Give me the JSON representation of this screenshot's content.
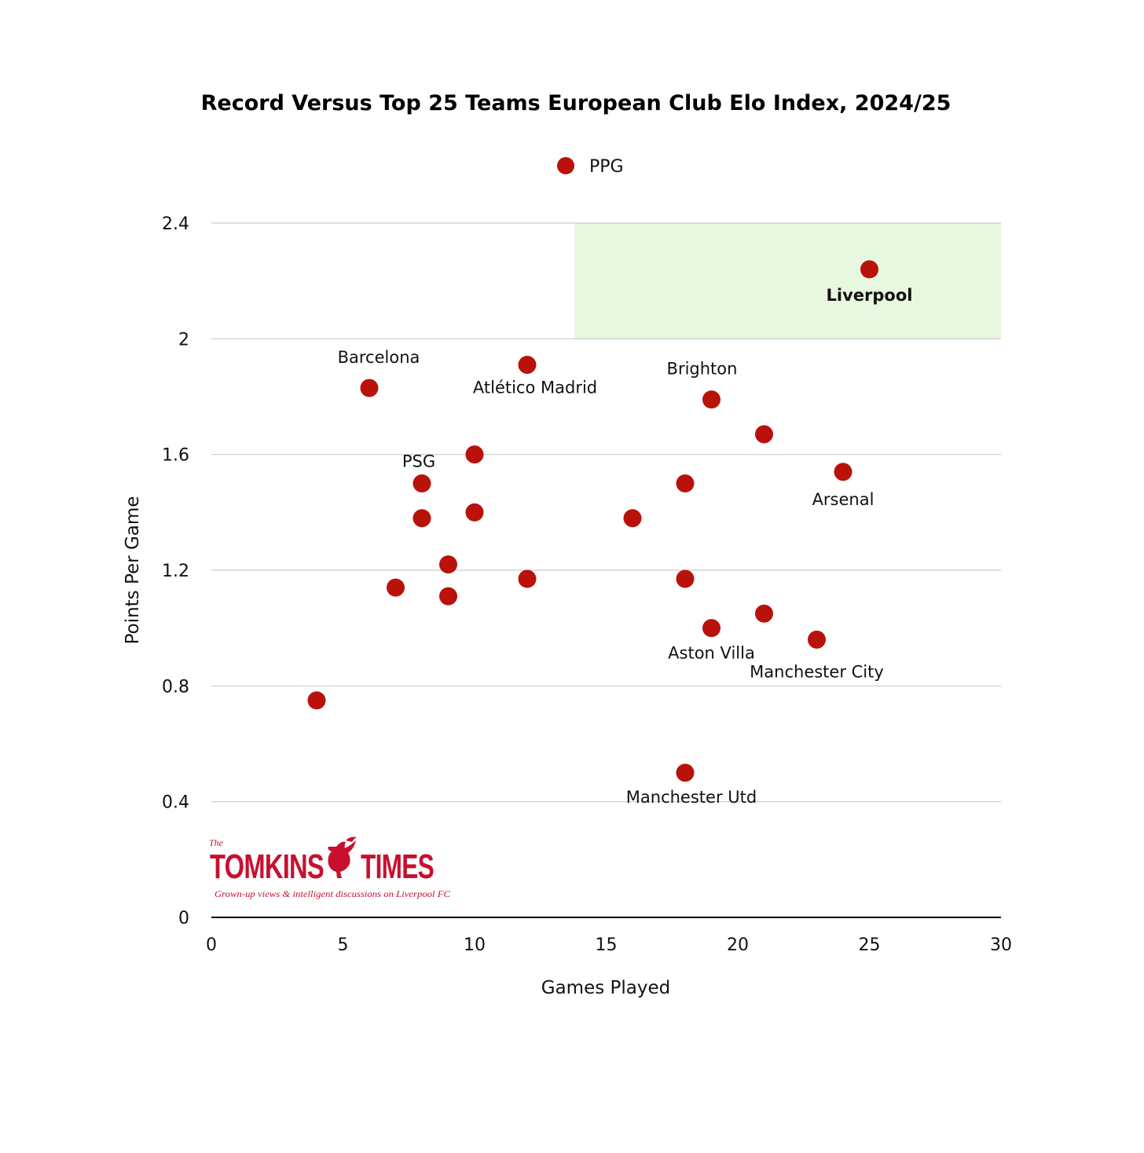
{
  "logo": {
    "the": "The",
    "name_left": "TOMKINS",
    "name_right": "TIMES",
    "tagline": "Grown-up views & intelligent discussions on Liverpool FC"
  },
  "colors": {
    "marker": "#b8120a",
    "highlight_region": "#e8f8e0",
    "gridline": "#cccccc",
    "axis": "#000000"
  },
  "chart_data": {
    "type": "scatter",
    "title": "Record Versus Top 25 Teams European Club Elo Index, 2024/25",
    "xlabel": "Games Played",
    "ylabel": "Points Per Game",
    "xlim": [
      0,
      30
    ],
    "ylim": [
      0,
      2.4
    ],
    "x_ticks": [
      0,
      5,
      10,
      15,
      20,
      25,
      30
    ],
    "y_ticks": [
      {
        "value": 0,
        "label": "0"
      },
      {
        "value": 0.4,
        "label": "0.4"
      },
      {
        "value": 0.8,
        "label": "0.8"
      },
      {
        "value": 1.2,
        "label": "1.2"
      },
      {
        "value": 1.6,
        "label": "1.6"
      },
      {
        "value": 2.0,
        "label": "2"
      },
      {
        "value": 2.4,
        "label": "2.4"
      }
    ],
    "grid": true,
    "legend": {
      "position": "top-center",
      "entries": [
        "PPG"
      ]
    },
    "highlight_region": {
      "x": [
        13.8,
        30
      ],
      "y": [
        2.0,
        2.4
      ]
    },
    "series": [
      {
        "name": "PPG",
        "points": [
          {
            "x": 25,
            "y": 2.24
          },
          {
            "x": 12,
            "y": 1.91
          },
          {
            "x": 6,
            "y": 1.83
          },
          {
            "x": 19,
            "y": 1.79
          },
          {
            "x": 21,
            "y": 1.67
          },
          {
            "x": 10,
            "y": 1.6
          },
          {
            "x": 24,
            "y": 1.54
          },
          {
            "x": 8,
            "y": 1.5
          },
          {
            "x": 18,
            "y": 1.5
          },
          {
            "x": 10,
            "y": 1.4
          },
          {
            "x": 8,
            "y": 1.38
          },
          {
            "x": 16,
            "y": 1.38
          },
          {
            "x": 9,
            "y": 1.22
          },
          {
            "x": 12,
            "y": 1.17
          },
          {
            "x": 18,
            "y": 1.17
          },
          {
            "x": 7,
            "y": 1.14
          },
          {
            "x": 9,
            "y": 1.11
          },
          {
            "x": 21,
            "y": 1.05
          },
          {
            "x": 19,
            "y": 1.0
          },
          {
            "x": 23,
            "y": 0.96
          },
          {
            "x": 4,
            "y": 0.75
          },
          {
            "x": 18,
            "y": 0.5
          }
        ]
      }
    ],
    "annotations": [
      {
        "text": "Liverpool",
        "x": 25,
        "y": 2.24,
        "bold": true
      },
      {
        "text": "Barcelona",
        "x": 6,
        "y": 1.83,
        "bold": false
      },
      {
        "text": "Atlético Madrid",
        "x": 12,
        "y": 1.91,
        "bold": false
      },
      {
        "text": "Brighton",
        "x": 19,
        "y": 1.79,
        "bold": false
      },
      {
        "text": "PSG",
        "x": 8,
        "y": 1.5,
        "bold": false
      },
      {
        "text": "Arsenal",
        "x": 24,
        "y": 1.54,
        "bold": false
      },
      {
        "text": "Aston Villa",
        "x": 19,
        "y": 1.0,
        "bold": false
      },
      {
        "text": "Manchester City",
        "x": 23,
        "y": 0.96,
        "bold": false
      },
      {
        "text": "Manchester Utd",
        "x": 18,
        "y": 0.5,
        "bold": false
      }
    ]
  }
}
